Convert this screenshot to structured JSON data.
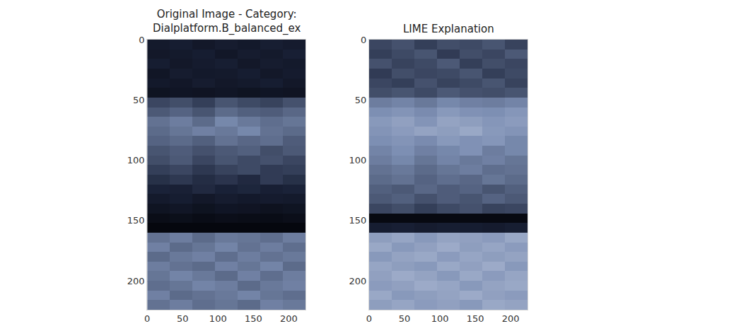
{
  "chart_data": [
    {
      "type": "heatmap",
      "title": "Original Image - Category: Dialplatform.B_balanced_ex",
      "x": [
        16,
        48,
        80,
        112,
        144,
        176,
        208
      ],
      "y": [
        4,
        12,
        20,
        28,
        36,
        44,
        52,
        60,
        68,
        76,
        84,
        92,
        100,
        108,
        116,
        124,
        132,
        140,
        148,
        156,
        164,
        172,
        180,
        188,
        196,
        204,
        212,
        220
      ],
      "z": [
        [
          0.22,
          0.25,
          0.2,
          0.24,
          0.21,
          0.26,
          0.23
        ],
        [
          0.2,
          0.22,
          0.25,
          0.19,
          0.24,
          0.22,
          0.27
        ],
        [
          0.25,
          0.2,
          0.23,
          0.26,
          0.2,
          0.24,
          0.22
        ],
        [
          0.18,
          0.24,
          0.21,
          0.22,
          0.25,
          0.2,
          0.23
        ],
        [
          0.21,
          0.19,
          0.24,
          0.2,
          0.22,
          0.25,
          0.2
        ],
        [
          0.15,
          0.17,
          0.16,
          0.18,
          0.15,
          0.17,
          0.16
        ],
        [
          0.4,
          0.42,
          0.38,
          0.44,
          0.41,
          0.39,
          0.43
        ],
        [
          0.45,
          0.48,
          0.44,
          0.5,
          0.47,
          0.46,
          0.49
        ],
        [
          0.52,
          0.55,
          0.5,
          0.58,
          0.54,
          0.51,
          0.53
        ],
        [
          0.5,
          0.53,
          0.56,
          0.54,
          0.58,
          0.52,
          0.5
        ],
        [
          0.48,
          0.5,
          0.47,
          0.52,
          0.49,
          0.51,
          0.46
        ],
        [
          0.44,
          0.46,
          0.43,
          0.45,
          0.47,
          0.42,
          0.45
        ],
        [
          0.42,
          0.45,
          0.4,
          0.44,
          0.41,
          0.43,
          0.4
        ],
        [
          0.38,
          0.4,
          0.36,
          0.39,
          0.41,
          0.37,
          0.38
        ],
        [
          0.34,
          0.36,
          0.33,
          0.35,
          0.32,
          0.37,
          0.34
        ],
        [
          0.3,
          0.28,
          0.32,
          0.29,
          0.31,
          0.27,
          0.3
        ],
        [
          0.22,
          0.25,
          0.2,
          0.24,
          0.21,
          0.23,
          0.22
        ],
        [
          0.15,
          0.18,
          0.14,
          0.17,
          0.16,
          0.13,
          0.15
        ],
        [
          0.08,
          0.1,
          0.07,
          0.09,
          0.08,
          0.07,
          0.09
        ],
        [
          0.02,
          0.02,
          0.02,
          0.02,
          0.02,
          0.02,
          0.02
        ],
        [
          0.52,
          0.55,
          0.5,
          0.54,
          0.53,
          0.51,
          0.55
        ],
        [
          0.56,
          0.5,
          0.53,
          0.57,
          0.52,
          0.55,
          0.51
        ],
        [
          0.5,
          0.54,
          0.56,
          0.51,
          0.55,
          0.52,
          0.54
        ],
        [
          0.55,
          0.52,
          0.5,
          0.56,
          0.53,
          0.57,
          0.5
        ],
        [
          0.53,
          0.57,
          0.54,
          0.5,
          0.56,
          0.51,
          0.55
        ],
        [
          0.51,
          0.53,
          0.57,
          0.55,
          0.5,
          0.54,
          0.56
        ],
        [
          0.56,
          0.5,
          0.52,
          0.54,
          0.57,
          0.53,
          0.51
        ],
        [
          0.52,
          0.55,
          0.51,
          0.53,
          0.5,
          0.56,
          0.54
        ]
      ],
      "zlim": [
        0,
        1
      ],
      "xlim": [
        0,
        224
      ],
      "ylim": [
        224,
        0
      ],
      "xticks": [
        0,
        50,
        100,
        150,
        200
      ],
      "yticks": [
        0,
        50,
        100,
        150,
        200
      ],
      "grid": true
    },
    {
      "type": "heatmap",
      "title": "LIME Explanation",
      "x": [
        16,
        48,
        80,
        112,
        144,
        176,
        208
      ],
      "y": [
        4,
        12,
        20,
        28,
        36,
        44,
        52,
        60,
        68,
        76,
        84,
        92,
        100,
        108,
        116,
        124,
        132,
        140,
        148,
        156,
        164,
        172,
        180,
        188,
        196,
        204,
        212,
        220
      ],
      "z": [
        [
          0.4,
          0.43,
          0.38,
          0.42,
          0.41,
          0.44,
          0.39
        ],
        [
          0.38,
          0.41,
          0.44,
          0.37,
          0.42,
          0.4,
          0.45
        ],
        [
          0.43,
          0.39,
          0.41,
          0.45,
          0.38,
          0.42,
          0.4
        ],
        [
          0.37,
          0.42,
          0.4,
          0.41,
          0.44,
          0.38,
          0.41
        ],
        [
          0.4,
          0.38,
          0.43,
          0.39,
          0.41,
          0.44,
          0.39
        ],
        [
          0.42,
          0.44,
          0.41,
          0.45,
          0.43,
          0.42,
          0.44
        ],
        [
          0.55,
          0.57,
          0.54,
          0.58,
          0.56,
          0.55,
          0.57
        ],
        [
          0.6,
          0.62,
          0.59,
          0.64,
          0.61,
          0.6,
          0.63
        ],
        [
          0.64,
          0.67,
          0.62,
          0.68,
          0.66,
          0.63,
          0.65
        ],
        [
          0.62,
          0.65,
          0.68,
          0.66,
          0.7,
          0.64,
          0.62
        ],
        [
          0.6,
          0.62,
          0.59,
          0.64,
          0.61,
          0.63,
          0.58
        ],
        [
          0.57,
          0.6,
          0.56,
          0.58,
          0.61,
          0.55,
          0.58
        ],
        [
          0.55,
          0.58,
          0.53,
          0.57,
          0.54,
          0.56,
          0.53
        ],
        [
          0.52,
          0.54,
          0.5,
          0.53,
          0.55,
          0.51,
          0.52
        ],
        [
          0.5,
          0.52,
          0.48,
          0.51,
          0.49,
          0.53,
          0.5
        ],
        [
          0.47,
          0.45,
          0.49,
          0.46,
          0.48,
          0.44,
          0.47
        ],
        [
          0.45,
          0.47,
          0.43,
          0.46,
          0.44,
          0.48,
          0.45
        ],
        [
          0.4,
          0.42,
          0.38,
          0.41,
          0.43,
          0.39,
          0.4
        ],
        [
          0.04,
          0.04,
          0.04,
          0.04,
          0.04,
          0.04,
          0.04
        ],
        [
          0.25,
          0.27,
          0.24,
          0.26,
          0.25,
          0.23,
          0.26
        ],
        [
          0.66,
          0.69,
          0.64,
          0.68,
          0.67,
          0.65,
          0.7
        ],
        [
          0.7,
          0.64,
          0.67,
          0.71,
          0.66,
          0.69,
          0.65
        ],
        [
          0.64,
          0.68,
          0.7,
          0.65,
          0.69,
          0.66,
          0.68
        ],
        [
          0.69,
          0.66,
          0.64,
          0.7,
          0.67,
          0.71,
          0.64
        ],
        [
          0.67,
          0.71,
          0.68,
          0.64,
          0.7,
          0.65,
          0.69
        ],
        [
          0.65,
          0.67,
          0.71,
          0.69,
          0.64,
          0.68,
          0.7
        ],
        [
          0.7,
          0.64,
          0.66,
          0.68,
          0.71,
          0.67,
          0.65
        ],
        [
          0.66,
          0.69,
          0.65,
          0.67,
          0.64,
          0.7,
          0.68
        ]
      ],
      "zlim": [
        0,
        1
      ],
      "xlim": [
        0,
        224
      ],
      "ylim": [
        224,
        0
      ],
      "xticks": [
        0,
        50,
        100,
        150,
        200
      ],
      "yticks": [
        0,
        50,
        100,
        150,
        200
      ],
      "grid": true
    }
  ]
}
